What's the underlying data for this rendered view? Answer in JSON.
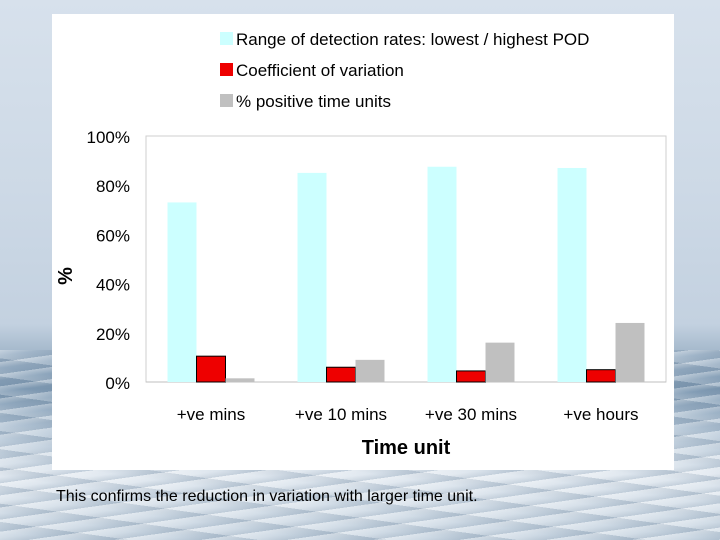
{
  "chart_data": {
    "type": "bar",
    "title": "",
    "xlabel": "Time unit",
    "ylabel": "%",
    "ylim": [
      0,
      100
    ],
    "yticks": [
      "0%",
      "20%",
      "40%",
      "60%",
      "80%",
      "100%"
    ],
    "categories": [
      "+ve mins",
      "+ve 10 mins",
      "+ve 30 mins",
      "+ve hours"
    ],
    "series": [
      {
        "name": "Range of detection rates: lowest / highest POD",
        "color": "#ccffff",
        "values": [
          73,
          85,
          87.5,
          87
        ]
      },
      {
        "name": "Coefficient of variation",
        "color": "#ee0000",
        "values": [
          10.5,
          6,
          4.5,
          5
        ]
      },
      {
        "name": "% positive time units",
        "color": "#c0c0c0",
        "values": [
          1.5,
          9,
          16,
          24
        ]
      }
    ],
    "legend": "top"
  },
  "caption": "This confirms the reduction in variation with larger time unit."
}
